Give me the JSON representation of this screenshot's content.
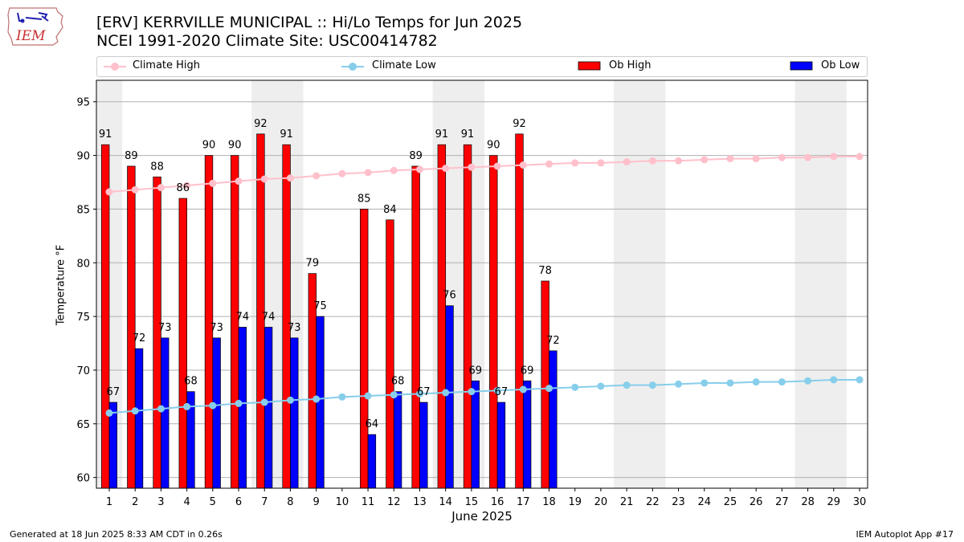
{
  "logo": {
    "text": "IEM",
    "icon": "iowa-state-outline-logo"
  },
  "header": {
    "title": "[ERV] KERRVILLE MUNICIPAL :: Hi/Lo Temps for Jun 2025",
    "subtitle": "NCEI 1991-2020 Climate Site: USC00414782"
  },
  "legend": [
    {
      "label": "Climate High",
      "kind": "line",
      "color": "#ffc0cb"
    },
    {
      "label": "Climate Low",
      "kind": "line",
      "color": "#87ceeb"
    },
    {
      "label": "Ob High",
      "kind": "bar",
      "color": "#ff0000"
    },
    {
      "label": "Ob Low",
      "kind": "bar",
      "color": "#0000ff"
    }
  ],
  "footer": {
    "left": "Generated at 18 Jun 2025 8:33 AM CDT in 0.26s",
    "right": "IEM Autoplot App #17"
  },
  "chart_data": {
    "type": "bar",
    "xlabel": "June 2025",
    "ylabel": "Temperature °F",
    "ylim": [
      59,
      97
    ],
    "yticks": [
      60,
      65,
      70,
      75,
      80,
      85,
      90,
      95
    ],
    "grid": "horizontal",
    "legend_position": "top",
    "categories": [
      "1",
      "2",
      "3",
      "4",
      "5",
      "6",
      "7",
      "8",
      "9",
      "10",
      "11",
      "12",
      "13",
      "14",
      "15",
      "16",
      "17",
      "18",
      "19",
      "20",
      "21",
      "22",
      "23",
      "24",
      "25",
      "26",
      "27",
      "28",
      "29",
      "30"
    ],
    "weekend_shading_days": [
      [
        1,
        1
      ],
      [
        7,
        8
      ],
      [
        14,
        15
      ],
      [
        21,
        22
      ],
      [
        28,
        29
      ]
    ],
    "series": [
      {
        "name": "Ob High",
        "kind": "bar",
        "color": "#ff0000",
        "values": [
          91,
          89,
          88,
          86,
          90,
          90,
          92,
          91,
          79,
          null,
          85,
          84,
          89,
          91,
          91,
          90,
          92,
          78.3,
          null,
          null,
          null,
          null,
          null,
          null,
          null,
          null,
          null,
          null,
          null,
          null
        ],
        "labels": [
          "91",
          "89",
          "88",
          "86",
          "90",
          "90",
          "92",
          "91",
          "79",
          "",
          "85",
          "84",
          "89",
          "91",
          "91",
          "90",
          "92",
          "78",
          "",
          "",
          "",
          "",
          "",
          "",
          "",
          "",
          "",
          "",
          "",
          ""
        ]
      },
      {
        "name": "Ob Low",
        "kind": "bar",
        "color": "#0000ff",
        "values": [
          67,
          72,
          73,
          68,
          73,
          74,
          74,
          73,
          75,
          null,
          64,
          68,
          67,
          76,
          69,
          67,
          69,
          71.8,
          null,
          null,
          null,
          null,
          null,
          null,
          null,
          null,
          null,
          null,
          null,
          null
        ],
        "labels": [
          "67",
          "72",
          "73",
          "68",
          "73",
          "74",
          "74",
          "73",
          "75",
          "",
          "64",
          "68",
          "67",
          "76",
          "69",
          "67",
          "69",
          "72",
          "",
          "",
          "",
          "",
          "",
          "",
          "",
          "",
          "",
          "",
          "",
          ""
        ]
      },
      {
        "name": "Climate High",
        "kind": "line",
        "color": "#ffc0cb",
        "values": [
          86.6,
          86.8,
          87.0,
          87.2,
          87.4,
          87.6,
          87.8,
          87.9,
          88.1,
          88.3,
          88.4,
          88.6,
          88.7,
          88.8,
          88.9,
          89.0,
          89.1,
          89.2,
          89.3,
          89.3,
          89.4,
          89.5,
          89.5,
          89.6,
          89.7,
          89.7,
          89.8,
          89.8,
          89.9,
          89.9
        ]
      },
      {
        "name": "Climate Low",
        "kind": "line",
        "color": "#87ceeb",
        "values": [
          66.0,
          66.2,
          66.4,
          66.6,
          66.7,
          66.9,
          67.0,
          67.2,
          67.3,
          67.5,
          67.6,
          67.7,
          67.8,
          67.9,
          68.0,
          68.1,
          68.2,
          68.3,
          68.4,
          68.5,
          68.6,
          68.6,
          68.7,
          68.8,
          68.8,
          68.9,
          68.9,
          69.0,
          69.1,
          69.1
        ]
      }
    ]
  }
}
